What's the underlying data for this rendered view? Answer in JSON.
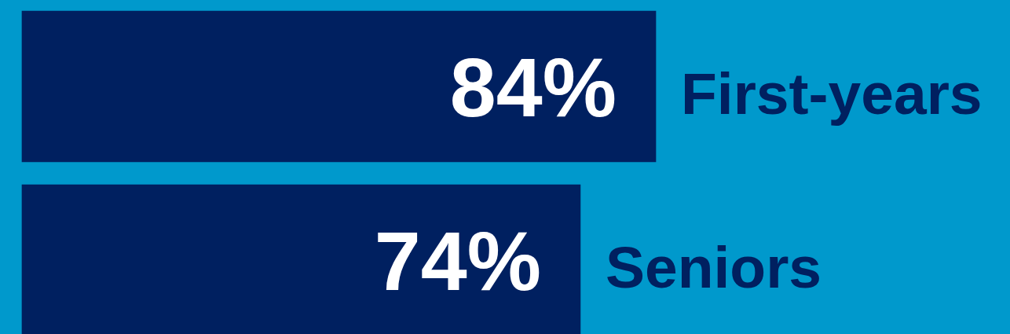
{
  "chart_data": {
    "type": "bar",
    "orientation": "horizontal",
    "categories": [
      "First-years",
      "Seniors"
    ],
    "values": [
      84,
      74
    ],
    "value_labels": [
      "84%",
      "74%"
    ],
    "color": "#002060",
    "tick_labels": "y"
  }
}
